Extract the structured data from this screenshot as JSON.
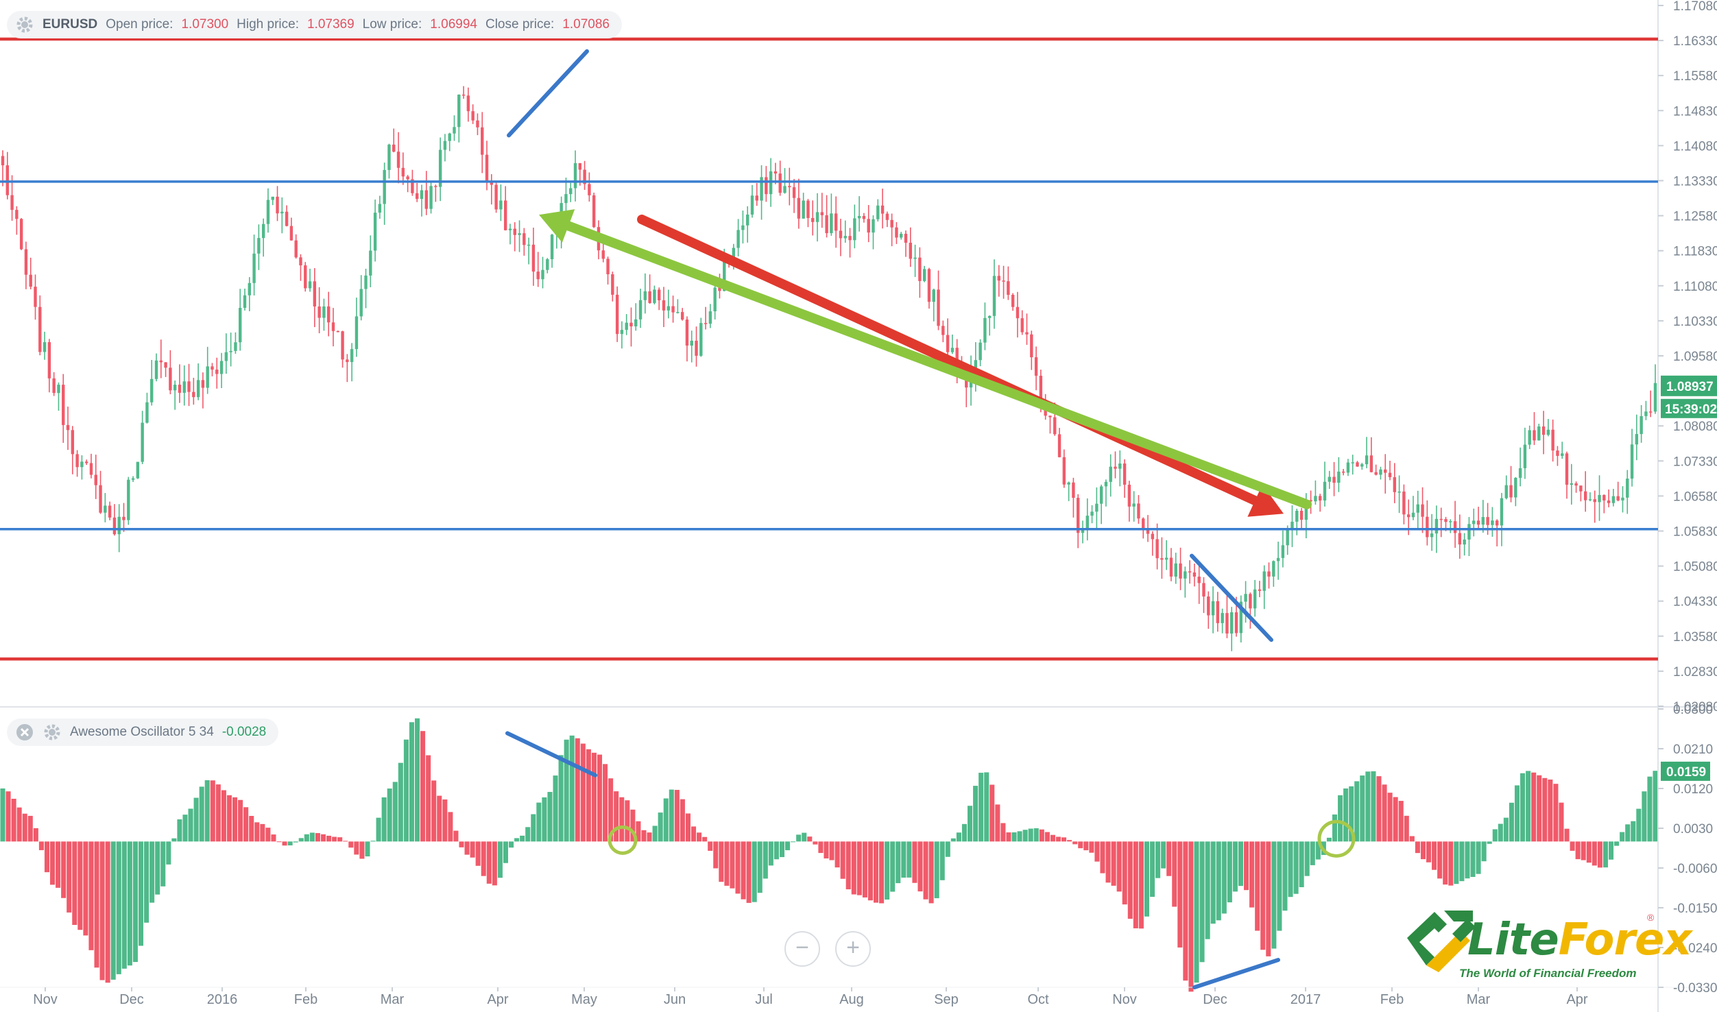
{
  "price_legend": {
    "symbol": "EURUSD",
    "open_label": "Open price:",
    "open_value": "1.07300",
    "high_label": "High price:",
    "high_value": "1.07369",
    "low_label": "Low price:",
    "low_value": "1.06994",
    "close_label": "Close price:",
    "close_value": "1.07086"
  },
  "oscillator_legend": {
    "name": "Awesome Oscillator 5 34",
    "value": "-0.0028"
  },
  "price_axis": {
    "ticks": [
      "1.17080",
      "1.16330",
      "1.15580",
      "1.14830",
      "1.14080",
      "1.13330",
      "1.12580",
      "1.11830",
      "1.11080",
      "1.10330",
      "1.09580",
      "1.08080",
      "1.07330",
      "1.06580",
      "1.05830",
      "1.05080",
      "1.04330",
      "1.03580",
      "1.02830",
      "1.02080"
    ],
    "current_price": "1.08937",
    "countdown": "15:39:02"
  },
  "oscillator_axis": {
    "ticks": [
      "0.0300",
      "0.0210",
      "0.0120",
      "0.0030",
      "-0.0060",
      "-0.0150",
      "-0.0240",
      "-0.0330"
    ],
    "current_value": "0.0159"
  },
  "time_axis": {
    "labels": [
      "Nov",
      "Dec",
      "2016",
      "Feb",
      "Mar",
      "Apr",
      "May",
      "Jun",
      "Jul",
      "Aug",
      "Sep",
      "Oct",
      "Nov",
      "Dec",
      "2017",
      "Feb",
      "Mar",
      "Apr"
    ]
  },
  "zoom": {
    "out": "−",
    "in": "+"
  },
  "logo": {
    "lite": "Lite",
    "forex": "Forex",
    "tagline": "The World of Financial Freedom",
    "reg": "®"
  },
  "colors": {
    "up": "#4fb98a",
    "down": "#f05a6a",
    "support_resistance": "#3a7fd0",
    "range_bounds": "#e03838",
    "downtrend_arrow": "#e03a2e",
    "uptrend_arrow": "#8cc63f",
    "divergence_line": "#3a78c9",
    "cross_marker": "#a8c84a"
  },
  "chart_data": [
    {
      "type": "candlestick",
      "series_name": "EURUSD",
      "ylim": [
        1.0208,
        1.1708
      ],
      "month_labels": [
        "Nov",
        "Dec",
        "2016",
        "Feb",
        "Mar",
        "Apr",
        "May",
        "Jun",
        "Jul",
        "Aug",
        "Sep",
        "Oct",
        "Nov",
        "Dec",
        "2017",
        "Feb",
        "Mar",
        "Apr"
      ],
      "anchor_closes": [
        1.136,
        1.098,
        1.073,
        1.058,
        1.093,
        1.088,
        1.098,
        1.132,
        1.11,
        1.094,
        1.14,
        1.128,
        1.153,
        1.125,
        1.113,
        1.137,
        1.102,
        1.11,
        1.097,
        1.12,
        1.135,
        1.125,
        1.123,
        1.127,
        1.112,
        1.09,
        1.115,
        1.088,
        1.06,
        1.072,
        1.052,
        1.046,
        1.038,
        1.052,
        1.064,
        1.075,
        1.068,
        1.06,
        1.058,
        1.063,
        1.083,
        1.064,
        1.064,
        1.089
      ],
      "horizontal_levels": [
        {
          "role": "resistance (red)",
          "price": 1.1636
        },
        {
          "role": "range top (blue)",
          "price": 1.1331
        },
        {
          "role": "range bottom (blue)",
          "price": 1.0587
        },
        {
          "role": "support (red)",
          "price": 1.0309
        }
      ],
      "annotations": [
        {
          "kind": "divergence line",
          "from": [
            "Apr",
            1.143
          ],
          "to": [
            "May",
            1.161
          ]
        },
        {
          "kind": "downtrend arrow",
          "from": [
            "May",
            1.125
          ],
          "to": [
            "Dec",
            1.062
          ]
        },
        {
          "kind": "divergence line",
          "from": [
            "Dec",
            1.053
          ],
          "to": [
            "Dec",
            1.035
          ]
        },
        {
          "kind": "uptrend arrow",
          "from": [
            "2017",
            1.064
          ],
          "to": [
            "Apr",
            1.126
          ]
        }
      ]
    },
    {
      "type": "bar",
      "series_name": "Awesome Oscillator 5 34",
      "ylim": [
        -0.033,
        0.03
      ],
      "anchor_values": [
        0.012,
        0.006,
        -0.01,
        -0.02,
        -0.032,
        -0.028,
        -0.012,
        0.006,
        0.014,
        0.01,
        0.004,
        -0.001,
        0.002,
        0.001,
        -0.004,
        0.012,
        0.028,
        0.01,
        -0.003,
        -0.01,
        0.001,
        0.01,
        0.024,
        0.02,
        0.01,
        0.002,
        0.012,
        0.002,
        -0.01,
        -0.014,
        -0.004,
        0.002,
        -0.004,
        -0.012,
        -0.014,
        -0.008,
        -0.014,
        0.002,
        0.016,
        0.002,
        0.003,
        0.001,
        -0.002,
        -0.01,
        -0.02,
        -0.006,
        -0.034,
        -0.018,
        -0.01,
        -0.026,
        -0.012,
        -0.004,
        0.012,
        0.016,
        0.01,
        -0.004,
        -0.01,
        -0.008,
        0.004,
        0.016,
        0.014,
        -0.004,
        -0.006,
        0.004,
        0.016
      ],
      "annotations": [
        {
          "kind": "divergence line",
          "from": [
            "Apr",
            0.0245
          ],
          "to": [
            "May",
            0.015
          ]
        },
        {
          "kind": "divergence line",
          "from": [
            "Dec",
            -0.033
          ],
          "to": [
            "2017",
            -0.0268
          ]
        },
        {
          "kind": "zero cross circle",
          "at": [
            "May",
            0.0
          ]
        },
        {
          "kind": "zero cross circle",
          "at": [
            "2017",
            0.0
          ]
        }
      ]
    }
  ]
}
